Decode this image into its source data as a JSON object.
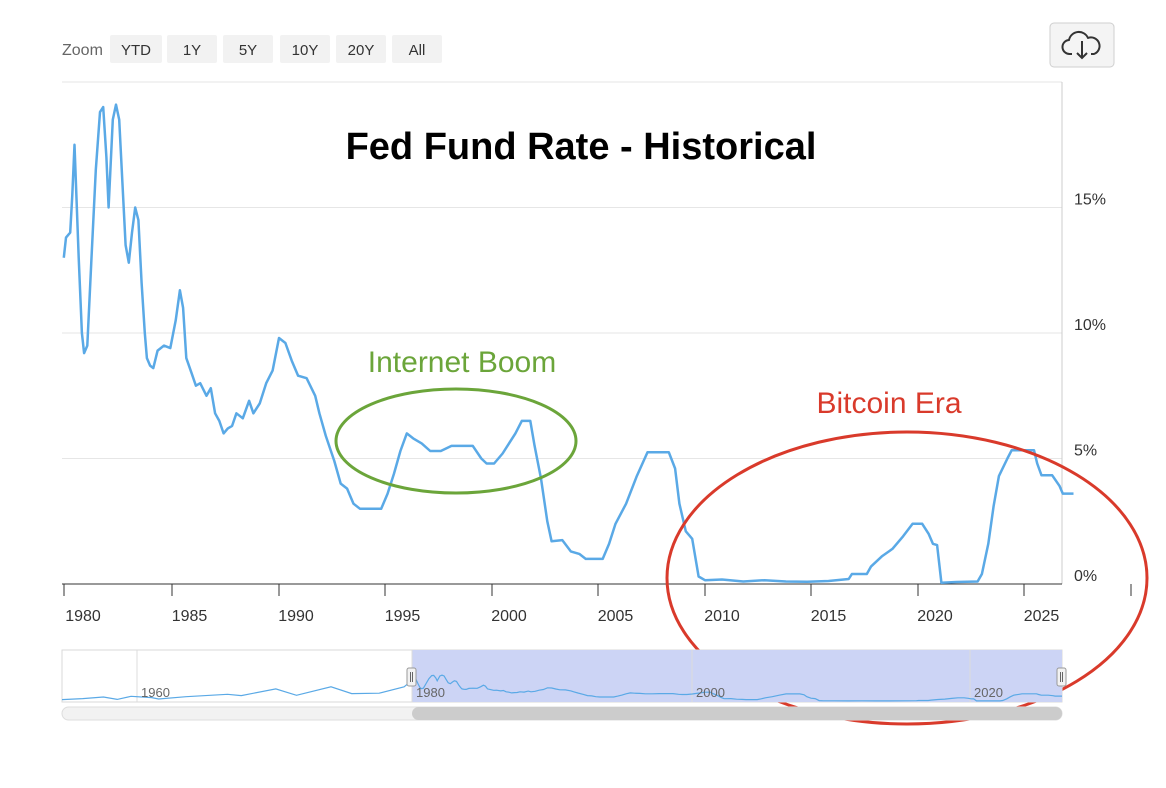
{
  "toolbar": {
    "zoom_label": "Zoom",
    "zoom_buttons": [
      "YTD",
      "1Y",
      "5Y",
      "10Y",
      "20Y",
      "All"
    ],
    "download_icon": "cloud-download-icon"
  },
  "colors": {
    "line": "#5aa9e6",
    "boom_circle": "#6ba53a",
    "bitcoin_circle": "#d93a2b",
    "navigator_fill": "#ccd4f5"
  },
  "navigator": {
    "labels": [
      "1960",
      "1980",
      "2000",
      "2020"
    ]
  },
  "chart_data": {
    "type": "line",
    "title": "Fed Fund Rate - Historical",
    "xlabel": "",
    "ylabel": "",
    "x_ticks": [
      "1980",
      "1985",
      "1990",
      "1995",
      "2000",
      "2005",
      "2010",
      "2015",
      "2020",
      "2025"
    ],
    "y_ticks": [
      "0%",
      "5%",
      "10%",
      "15%"
    ],
    "xlim": [
      1979.1,
      2026.5
    ],
    "ylim": [
      0,
      20
    ],
    "grid": true,
    "series": [
      {
        "values": [
          [
            1979.1,
            13.0
          ],
          [
            1979.2,
            13.8
          ],
          [
            1979.4,
            14.0
          ],
          [
            1979.5,
            15.5
          ],
          [
            1979.6,
            17.5
          ],
          [
            1979.8,
            13.0
          ],
          [
            1979.95,
            10.0
          ],
          [
            1980.05,
            9.2
          ],
          [
            1980.2,
            9.5
          ],
          [
            1980.4,
            13.0
          ],
          [
            1980.6,
            16.5
          ],
          [
            1980.8,
            18.8
          ],
          [
            1980.95,
            19.0
          ],
          [
            1981.1,
            17.0
          ],
          [
            1981.2,
            15.0
          ],
          [
            1981.4,
            18.5
          ],
          [
            1981.55,
            19.1
          ],
          [
            1981.7,
            18.5
          ],
          [
            1981.85,
            16.0
          ],
          [
            1982.0,
            13.5
          ],
          [
            1982.15,
            12.8
          ],
          [
            1982.3,
            14.0
          ],
          [
            1982.45,
            15.0
          ],
          [
            1982.6,
            14.5
          ],
          [
            1982.75,
            12.0
          ],
          [
            1982.9,
            10.0
          ],
          [
            1983.0,
            9.0
          ],
          [
            1983.15,
            8.7
          ],
          [
            1983.3,
            8.6
          ],
          [
            1983.5,
            9.3
          ],
          [
            1983.8,
            9.5
          ],
          [
            1984.1,
            9.4
          ],
          [
            1984.35,
            10.5
          ],
          [
            1984.55,
            11.7
          ],
          [
            1984.7,
            11.0
          ],
          [
            1984.85,
            9.0
          ],
          [
            1985.1,
            8.4
          ],
          [
            1985.3,
            7.9
          ],
          [
            1985.5,
            8.0
          ],
          [
            1985.8,
            7.5
          ],
          [
            1986.0,
            7.8
          ],
          [
            1986.2,
            6.8
          ],
          [
            1986.4,
            6.5
          ],
          [
            1986.6,
            6.0
          ],
          [
            1986.8,
            6.2
          ],
          [
            1987.0,
            6.3
          ],
          [
            1987.2,
            6.8
          ],
          [
            1987.5,
            6.6
          ],
          [
            1987.8,
            7.3
          ],
          [
            1988.0,
            6.8
          ],
          [
            1988.3,
            7.2
          ],
          [
            1988.6,
            8.0
          ],
          [
            1988.9,
            8.5
          ],
          [
            1989.2,
            9.8
          ],
          [
            1989.5,
            9.6
          ],
          [
            1989.8,
            8.9
          ],
          [
            1990.1,
            8.3
          ],
          [
            1990.5,
            8.2
          ],
          [
            1990.9,
            7.5
          ],
          [
            1991.1,
            6.8
          ],
          [
            1991.4,
            5.9
          ],
          [
            1991.8,
            4.9
          ],
          [
            1992.1,
            4.0
          ],
          [
            1992.4,
            3.8
          ],
          [
            1992.7,
            3.2
          ],
          [
            1993.0,
            3.0
          ],
          [
            1993.5,
            3.0
          ],
          [
            1994.0,
            3.0
          ],
          [
            1994.3,
            3.6
          ],
          [
            1994.6,
            4.4
          ],
          [
            1994.9,
            5.3
          ],
          [
            1995.2,
            6.0
          ],
          [
            1995.5,
            5.8
          ],
          [
            1995.9,
            5.6
          ],
          [
            1996.3,
            5.3
          ],
          [
            1996.8,
            5.3
          ],
          [
            1997.3,
            5.5
          ],
          [
            1997.8,
            5.5
          ],
          [
            1998.3,
            5.5
          ],
          [
            1998.7,
            5.0
          ],
          [
            1998.95,
            4.8
          ],
          [
            1999.3,
            4.8
          ],
          [
            1999.7,
            5.2
          ],
          [
            2000.0,
            5.6
          ],
          [
            2000.3,
            6.0
          ],
          [
            2000.6,
            6.5
          ],
          [
            2001.0,
            6.5
          ],
          [
            2001.2,
            5.5
          ],
          [
            2001.5,
            4.2
          ],
          [
            2001.8,
            2.5
          ],
          [
            2002.0,
            1.7
          ],
          [
            2002.5,
            1.75
          ],
          [
            2002.9,
            1.3
          ],
          [
            2003.3,
            1.2
          ],
          [
            2003.6,
            1.0
          ],
          [
            2004.0,
            1.0
          ],
          [
            2004.4,
            1.0
          ],
          [
            2004.7,
            1.6
          ],
          [
            2005.0,
            2.4
          ],
          [
            2005.5,
            3.2
          ],
          [
            2006.0,
            4.3
          ],
          [
            2006.5,
            5.25
          ],
          [
            2007.0,
            5.25
          ],
          [
            2007.5,
            5.25
          ],
          [
            2007.8,
            4.6
          ],
          [
            2008.0,
            3.2
          ],
          [
            2008.3,
            2.1
          ],
          [
            2008.6,
            1.8
          ],
          [
            2008.9,
            0.3
          ],
          [
            2009.2,
            0.15
          ],
          [
            2010.0,
            0.18
          ],
          [
            2011.0,
            0.1
          ],
          [
            2012.0,
            0.15
          ],
          [
            2013.0,
            0.1
          ],
          [
            2014.0,
            0.09
          ],
          [
            2015.0,
            0.12
          ],
          [
            2015.95,
            0.2
          ],
          [
            2016.1,
            0.4
          ],
          [
            2016.8,
            0.4
          ],
          [
            2017.0,
            0.7
          ],
          [
            2017.5,
            1.1
          ],
          [
            2018.0,
            1.4
          ],
          [
            2018.5,
            1.9
          ],
          [
            2018.95,
            2.4
          ],
          [
            2019.4,
            2.4
          ],
          [
            2019.7,
            2.0
          ],
          [
            2019.9,
            1.6
          ],
          [
            2020.1,
            1.55
          ],
          [
            2020.3,
            0.05
          ],
          [
            2021.0,
            0.08
          ],
          [
            2022.0,
            0.1
          ],
          [
            2022.2,
            0.4
          ],
          [
            2022.5,
            1.6
          ],
          [
            2022.75,
            3.1
          ],
          [
            2023.0,
            4.3
          ],
          [
            2023.4,
            5.0
          ],
          [
            2023.6,
            5.33
          ],
          [
            2024.0,
            5.33
          ],
          [
            2024.65,
            5.33
          ],
          [
            2024.8,
            4.8
          ],
          [
            2025.0,
            4.33
          ],
          [
            2025.5,
            4.33
          ],
          [
            2025.85,
            3.9
          ],
          [
            2026.0,
            3.6
          ],
          [
            2026.5,
            3.6
          ]
        ]
      }
    ],
    "annotations": [
      {
        "text": "Internet Boom",
        "color": "#6ba53a"
      },
      {
        "text": "Bitcoin Era",
        "color": "#d93a2b"
      }
    ]
  }
}
